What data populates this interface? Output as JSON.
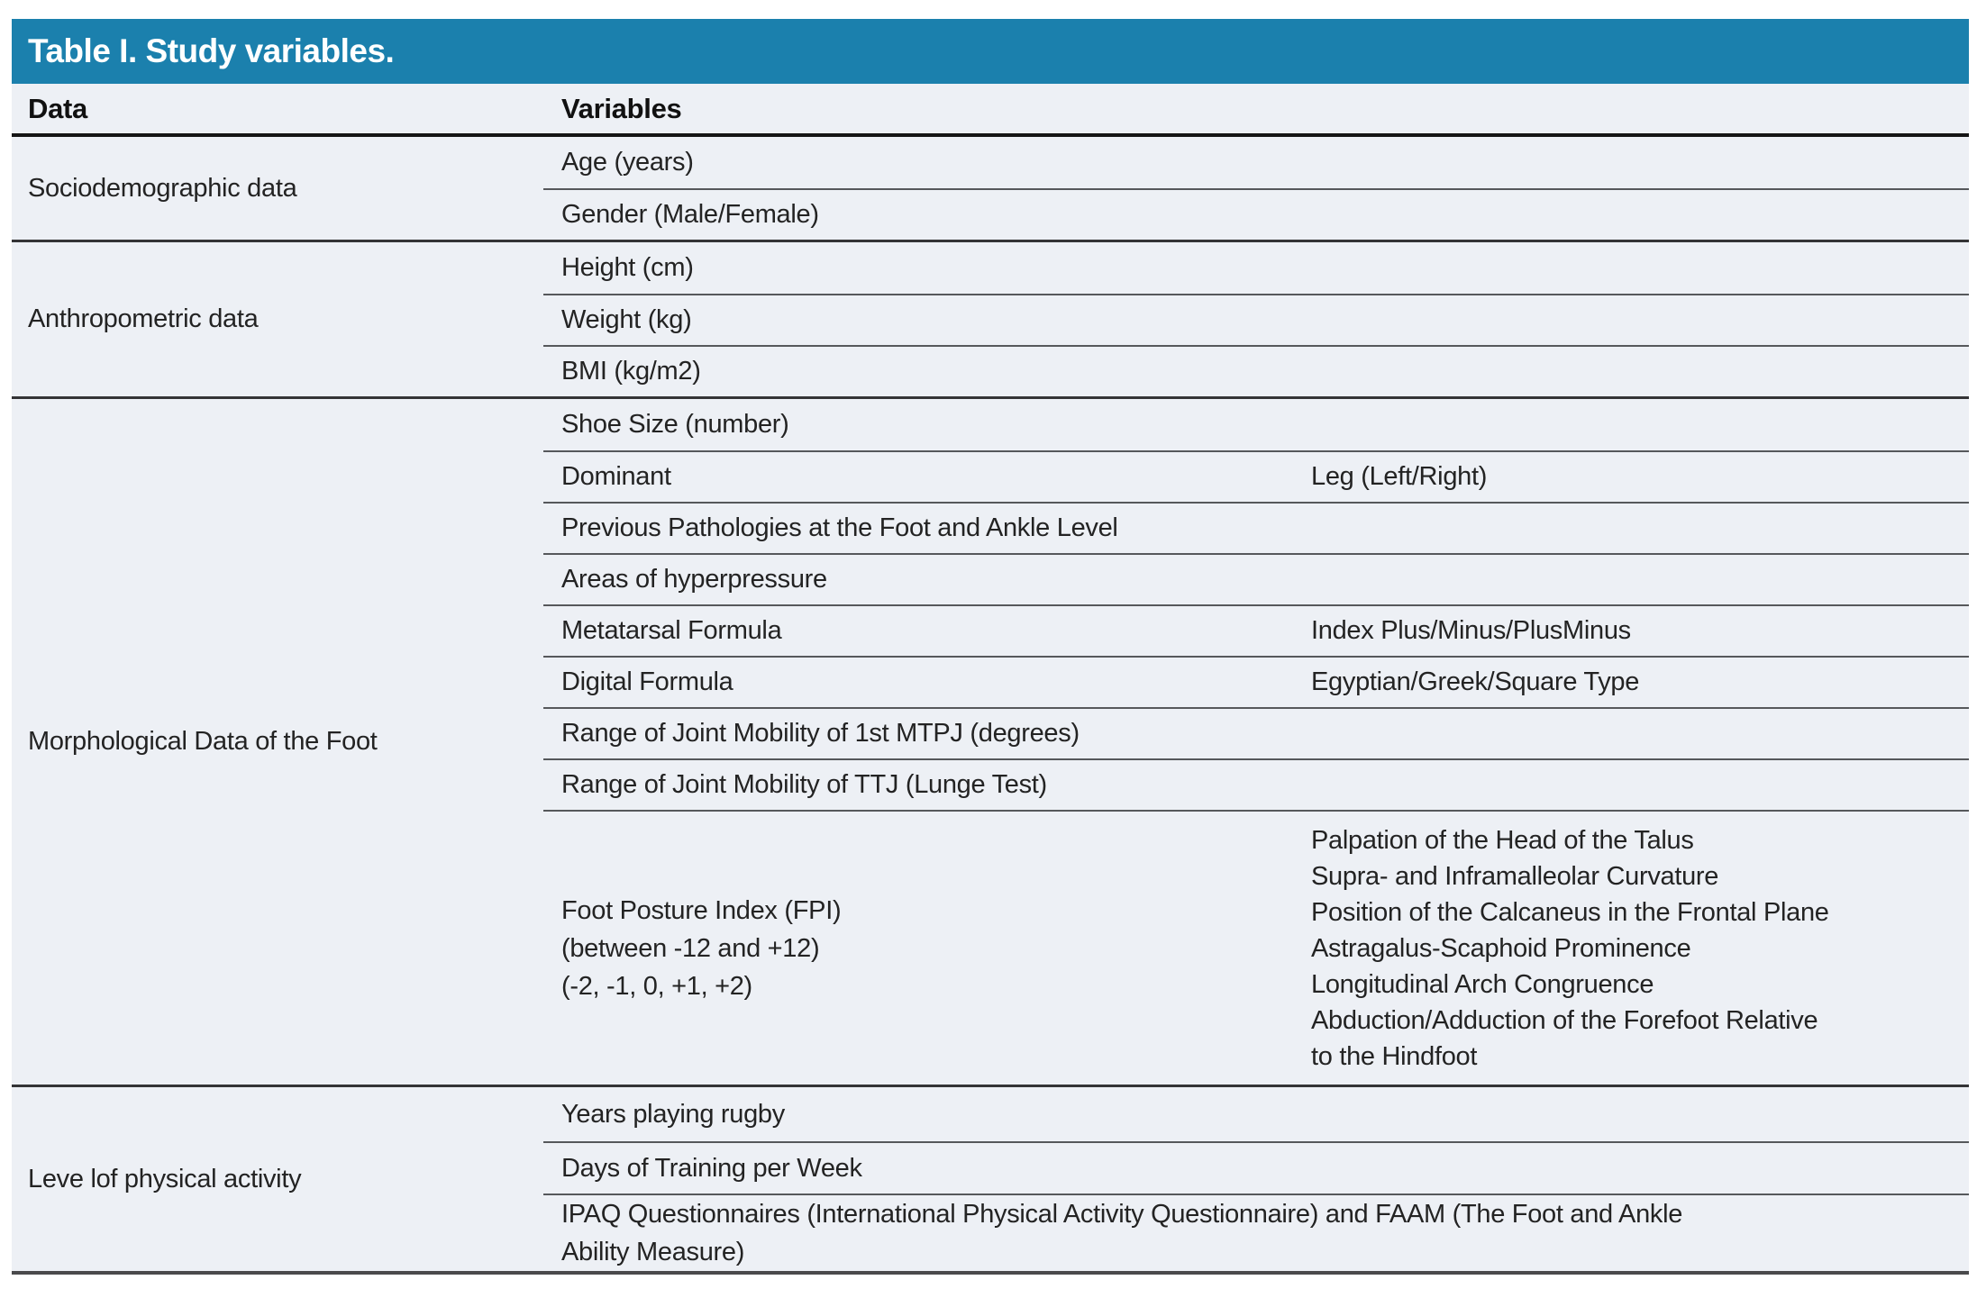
{
  "title": "Table I. Study variables.",
  "colors": {
    "title_bar_bg": "#1b80ad",
    "title_text": "#ffffff",
    "row_bg": "#edf0f5",
    "body_text": "#232323",
    "group_divider": "#343436",
    "sub_divider": "#56585b",
    "header_underline": "#151515",
    "bottom_border": "#4a4a4c"
  },
  "columns": {
    "data": "Data",
    "variables": "Variables"
  },
  "groups": [
    {
      "label": "Sociodemographic data",
      "rows": [
        {
          "variable": "Age (years)"
        },
        {
          "variable": "Gender (Male/Female)"
        }
      ]
    },
    {
      "label": "Anthropometric data",
      "rows": [
        {
          "variable": "Height (cm)"
        },
        {
          "variable": "Weight (kg)"
        },
        {
          "variable": "BMI (kg/m2)"
        }
      ]
    },
    {
      "label": "Morphological Data of the Foot",
      "rows": [
        {
          "variable": "Shoe Size (number)"
        },
        {
          "variable": "Dominant",
          "detail": "Leg (Left/Right)"
        },
        {
          "variable": "Previous Pathologies at the Foot and Ankle Level"
        },
        {
          "variable": "Areas of hyperpressure"
        },
        {
          "variable": "Metatarsal Formula",
          "detail": "Index Plus/Minus/PlusMinus"
        },
        {
          "variable": "Digital Formula",
          "detail": "Egyptian/Greek/Square Type"
        },
        {
          "variable": "Range of Joint Mobility of 1st MTPJ (degrees)"
        },
        {
          "variable": "Range of Joint Mobility of TTJ (Lunge Test)"
        },
        {
          "variable_lines": [
            "Foot Posture Index (FPI)",
            "(between -12 and +12)",
            "(-2, -1, 0, +1, +2)"
          ],
          "detail_lines": [
            "Palpation of the Head of the Talus",
            "Supra- and Inframalleolar Curvature",
            "Position of the Calcaneus in the Frontal Plane",
            "Astragalus-Scaphoid Prominence",
            "Longitudinal Arch Congruence",
            "Abduction/Adduction of the Forefoot Relative",
            "to the Hindfoot"
          ]
        }
      ]
    },
    {
      "label": "Leve lof physical activity",
      "rows": [
        {
          "variable": "Years playing rugby"
        },
        {
          "variable": "Days of Training per Week"
        },
        {
          "variable_lines": [
            "IPAQ Questionnaires (International Physical Activity Questionnaire) and FAAM (The Foot and Ankle",
            "Ability Measure)"
          ]
        }
      ]
    }
  ]
}
